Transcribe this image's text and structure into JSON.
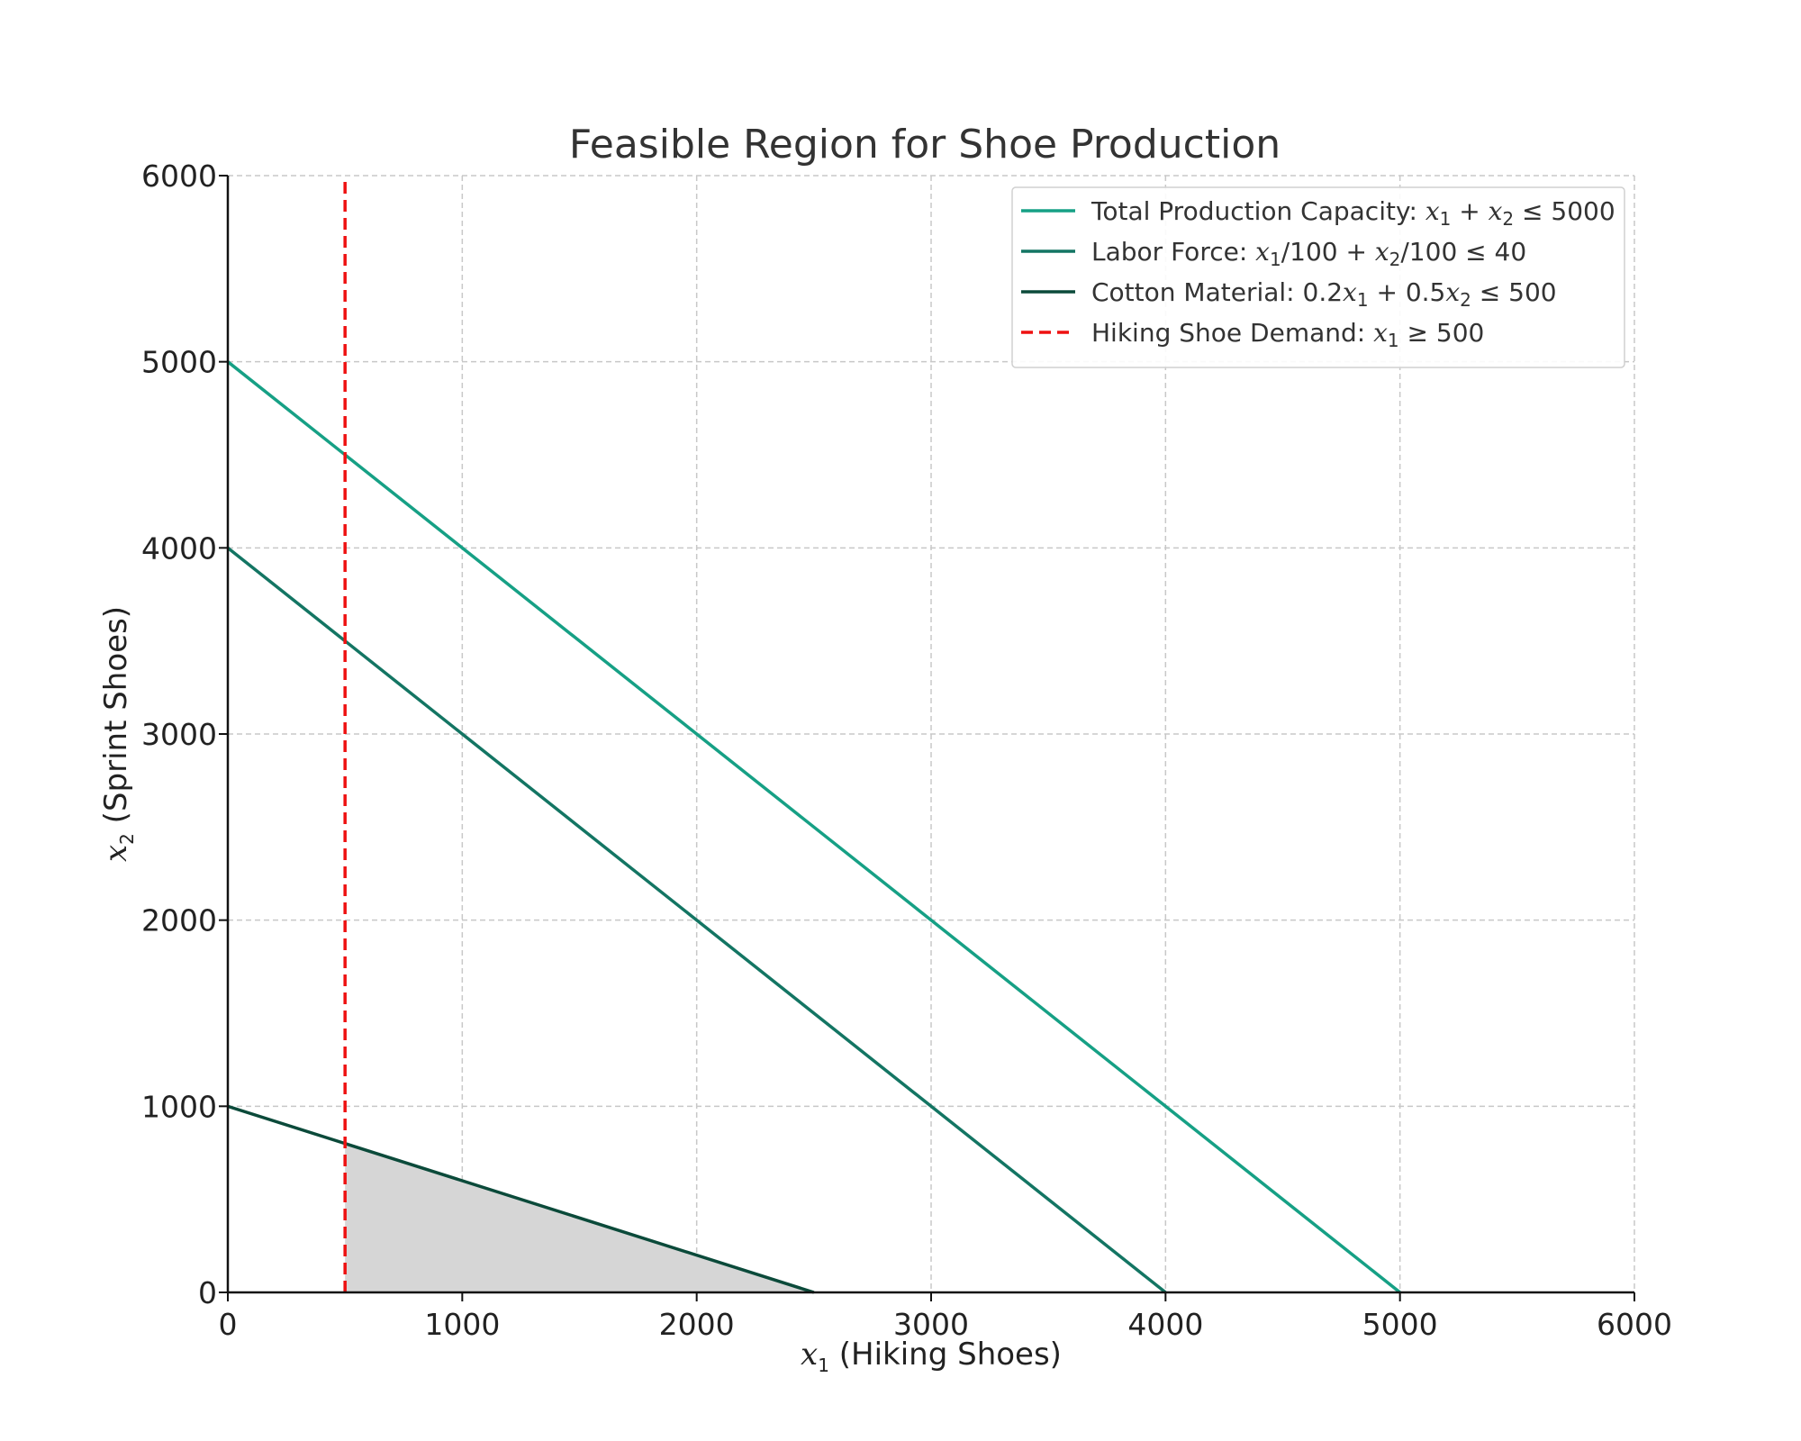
{
  "chart_data": {
    "type": "line",
    "title": "Feasible Region for Shoe Production",
    "xlabel": {
      "var": "x",
      "sub": "1",
      "text": " (Hiking Shoes)"
    },
    "ylabel": {
      "var": "x",
      "sub": "2",
      "text": " (Sprint Shoes)"
    },
    "xlim": [
      0,
      6000
    ],
    "ylim": [
      0,
      6000
    ],
    "xticks": [
      0,
      1000,
      2000,
      3000,
      4000,
      5000,
      6000
    ],
    "yticks": [
      0,
      1000,
      2000,
      3000,
      4000,
      5000,
      6000
    ],
    "grid": true,
    "legend_position": "top-right",
    "series": [
      {
        "label_parts": [
          {
            "t": "Total Production Capacity: "
          },
          {
            "t": "x",
            "m": true
          },
          {
            "t": "1",
            "s": true
          },
          {
            "t": " + "
          },
          {
            "t": "x",
            "m": true
          },
          {
            "t": "2",
            "s": true
          },
          {
            "t": " ≤ 5000"
          }
        ],
        "color": "#16a085",
        "dash": false,
        "points": [
          [
            0,
            5000
          ],
          [
            5000,
            0
          ]
        ]
      },
      {
        "label_parts": [
          {
            "t": "Labor Force: "
          },
          {
            "t": "x",
            "m": true
          },
          {
            "t": "1",
            "s": true
          },
          {
            "t": "/100 + "
          },
          {
            "t": "x",
            "m": true
          },
          {
            "t": "2",
            "s": true
          },
          {
            "t": "/100 ≤ 40"
          }
        ],
        "color": "#137563",
        "dash": false,
        "points": [
          [
            0,
            4000
          ],
          [
            4000,
            0
          ]
        ]
      },
      {
        "label_parts": [
          {
            "t": "Cotton Material: 0.2"
          },
          {
            "t": "x",
            "m": true
          },
          {
            "t": "1",
            "s": true
          },
          {
            "t": " + 0.5"
          },
          {
            "t": "x",
            "m": true
          },
          {
            "t": "2",
            "s": true
          },
          {
            "t": " ≤ 500"
          }
        ],
        "color": "#0b4a3a",
        "dash": false,
        "points": [
          [
            0,
            1000
          ],
          [
            2500,
            0
          ]
        ]
      },
      {
        "label_parts": [
          {
            "t": "Hiking Shoe Demand: "
          },
          {
            "t": "x",
            "m": true
          },
          {
            "t": "1",
            "s": true
          },
          {
            "t": " ≥ 500"
          }
        ],
        "color": "#ee1111",
        "dash": true,
        "points": [
          [
            500,
            0
          ],
          [
            500,
            6000
          ]
        ]
      }
    ],
    "feasible_region": {
      "color": "#d6d6d6",
      "points": [
        [
          500,
          0
        ],
        [
          500,
          800
        ],
        [
          2500,
          0
        ]
      ]
    }
  }
}
